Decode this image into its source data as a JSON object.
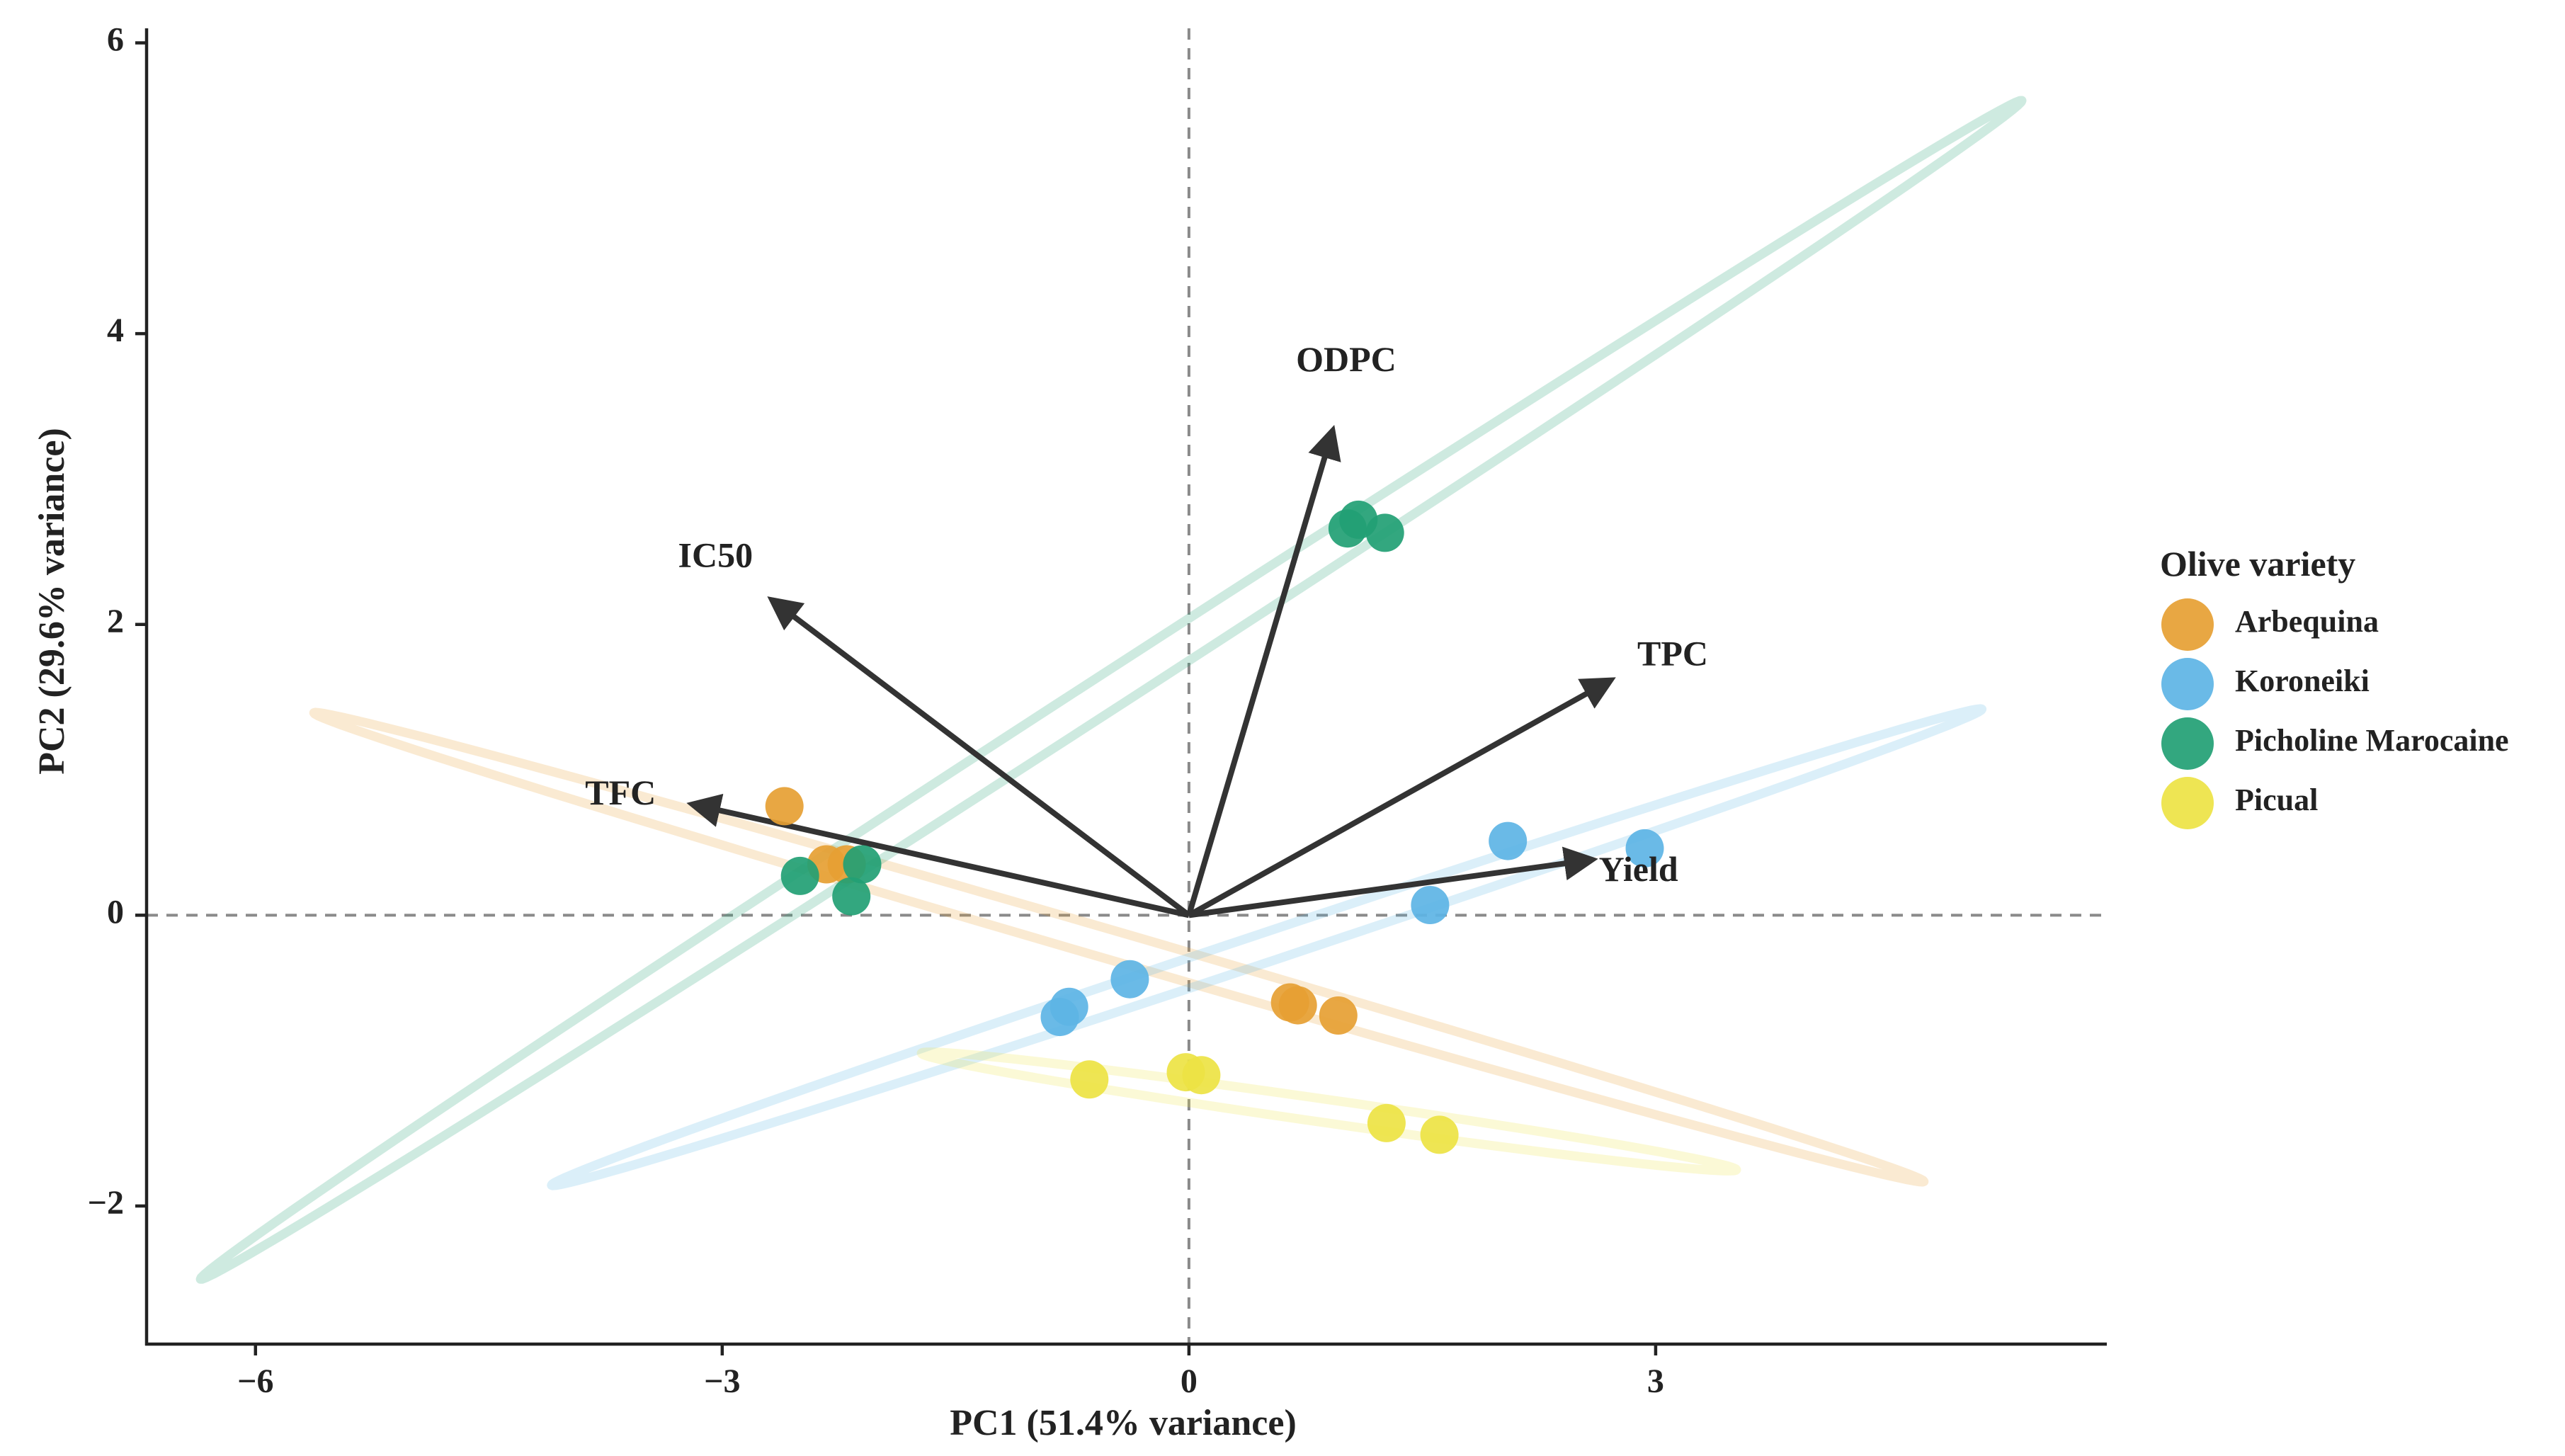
{
  "chart_data": {
    "type": "scatter",
    "title": "",
    "xlabel": "PC1 (51.4% variance)",
    "ylabel": "PC2 (29.6% variance)",
    "xlim": [
      -6.7,
      5.9
    ],
    "ylim": [
      -2.95,
      6.1
    ],
    "xticks": [
      -6,
      -3,
      0,
      3
    ],
    "yticks": [
      -2,
      0,
      2,
      4,
      6
    ],
    "grid": false,
    "reference_lines": {
      "x": 0,
      "y": 0,
      "style": "dashed"
    },
    "legend": {
      "title": "Olive variety",
      "position": "right",
      "entries": [
        {
          "label": "Arbequina",
          "color": "#E69F33"
        },
        {
          "label": "Koroneiki",
          "color": "#5DB4E5"
        },
        {
          "label": "Picholine Marocaine",
          "color": "#22A074"
        },
        {
          "label": "Picual",
          "color": "#EDE344"
        }
      ]
    },
    "series": [
      {
        "name": "Arbequina",
        "color": "#E69F33",
        "points": [
          {
            "x": -2.6,
            "y": 0.75
          },
          {
            "x": -2.33,
            "y": 0.35
          },
          {
            "x": -2.2,
            "y": 0.35
          },
          {
            "x": 0.65,
            "y": -0.6
          },
          {
            "x": 0.7,
            "y": -0.62
          },
          {
            "x": 0.96,
            "y": -0.69
          }
        ],
        "ellipse": {
          "center": [
            -0.45,
            -0.22
          ],
          "angle": -17.3,
          "semi_major": 5.42,
          "semi_minor": 0.1
        }
      },
      {
        "name": "Koroneiki",
        "color": "#5DB4E5",
        "points": [
          {
            "x": -0.38,
            "y": -0.44
          },
          {
            "x": -0.77,
            "y": -0.63
          },
          {
            "x": -0.83,
            "y": -0.7
          },
          {
            "x": 1.55,
            "y": 0.07
          },
          {
            "x": 2.05,
            "y": 0.51
          },
          {
            "x": 2.93,
            "y": 0.46
          }
        ],
        "ellipse": {
          "center": [
            0.5,
            -0.22
          ],
          "angle": 19.6,
          "semi_major": 4.88,
          "semi_minor": 0.1
        }
      },
      {
        "name": "Picholine Marocaine",
        "color": "#22A074",
        "points": [
          {
            "x": -2.5,
            "y": 0.27
          },
          {
            "x": -2.1,
            "y": 0.35
          },
          {
            "x": -2.17,
            "y": 0.13
          },
          {
            "x": 1.02,
            "y": 2.66
          },
          {
            "x": 1.09,
            "y": 2.72
          },
          {
            "x": 1.26,
            "y": 2.63
          }
        ],
        "ellipse": {
          "center": [
            -0.5,
            1.55
          ],
          "angle": 34.7,
          "semi_major": 7.12,
          "semi_minor": 0.12
        }
      },
      {
        "name": "Picual",
        "color": "#EDE344",
        "points": [
          {
            "x": -0.64,
            "y": -1.13
          },
          {
            "x": -0.02,
            "y": -1.08
          },
          {
            "x": 0.08,
            "y": -1.1
          },
          {
            "x": 1.27,
            "y": -1.43
          },
          {
            "x": 1.61,
            "y": -1.51
          }
        ],
        "ellipse": {
          "center": [
            0.9,
            -1.35
          ],
          "angle": -8.7,
          "semi_major": 2.65,
          "semi_minor": 0.08
        }
      }
    ],
    "loadings": [
      {
        "label": "ODPC",
        "x": 0.92,
        "y": 3.32
      },
      {
        "label": "IC50",
        "x": -2.67,
        "y": 2.16
      },
      {
        "label": "TPC",
        "x": 2.7,
        "y": 1.61
      },
      {
        "label": "TFC",
        "x": -3.18,
        "y": 0.76
      },
      {
        "label": "Yield",
        "x": 2.58,
        "y": 0.38
      }
    ]
  }
}
